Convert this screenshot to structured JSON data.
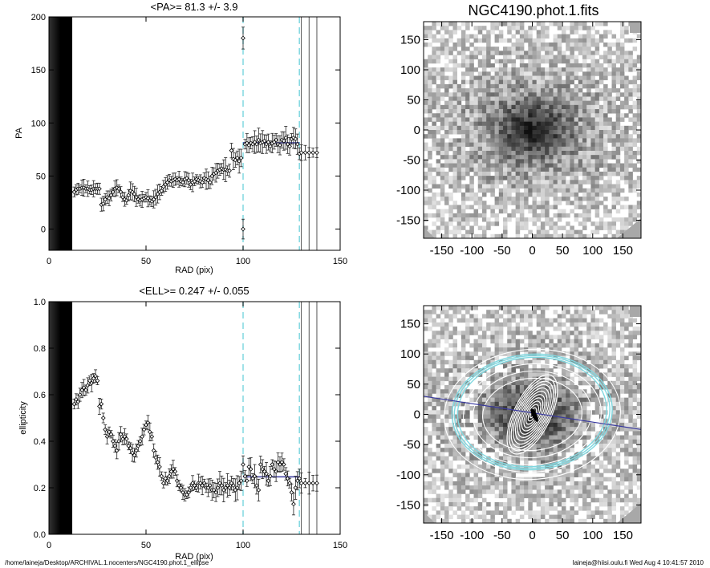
{
  "footer": {
    "path": "/home/laineja/Desktop/ARCHIVAL.1.nocenters/NGC4190.phot.1_ellipse",
    "user_date": "laineja@hiisi.oulu.fi  Wed Aug  4 10:41:57 2010"
  },
  "colors": {
    "mean_line": "#3a3aa0",
    "cyan": "#80d8e0",
    "marker": "#000000"
  },
  "chart_data": [
    {
      "type": "scatter",
      "title": "<PA>=  81.3 +/-   3.9",
      "xlabel": "RAD (pix)",
      "ylabel": "PA",
      "xlim": [
        0,
        150
      ],
      "ylim": [
        -20,
        200
      ],
      "xticks": [
        0,
        50,
        100,
        150
      ],
      "yticks": [
        0,
        50,
        100,
        150,
        200
      ],
      "masked_region": [
        0,
        12
      ],
      "cyan_dashed_x": [
        100,
        129
      ],
      "gray_vlines_x": [
        130,
        134,
        138
      ],
      "mean": {
        "value": 81.3,
        "err": 3.9,
        "range": [
          100,
          129
        ]
      },
      "x": [
        13,
        14,
        15,
        16,
        17,
        18,
        19,
        20,
        21,
        22,
        23,
        24,
        25,
        26,
        27,
        28,
        29,
        30,
        31,
        32,
        33,
        34,
        35,
        36,
        37,
        38,
        39,
        40,
        41,
        42,
        43,
        44,
        45,
        46,
        47,
        48,
        49,
        50,
        51,
        52,
        53,
        54,
        55,
        56,
        57,
        58,
        59,
        60,
        61,
        62,
        63,
        64,
        65,
        66,
        67,
        68,
        69,
        70,
        71,
        72,
        73,
        74,
        75,
        76,
        77,
        78,
        79,
        80,
        81,
        82,
        83,
        84,
        85,
        86,
        87,
        88,
        89,
        90,
        91,
        92,
        93,
        94,
        95,
        96,
        97,
        98,
        99,
        100,
        100,
        101,
        102,
        103,
        104,
        105,
        106,
        107,
        108,
        109,
        110,
        111,
        112,
        113,
        114,
        115,
        116,
        117,
        118,
        119,
        120,
        121,
        122,
        123,
        124,
        125,
        126,
        127,
        128,
        129,
        130,
        132,
        134,
        136,
        138
      ],
      "y": [
        35,
        37,
        38,
        38,
        39,
        39,
        38,
        38,
        37,
        37,
        38,
        38,
        38,
        38,
        23,
        24,
        28,
        30,
        29,
        32,
        35,
        38,
        39,
        38,
        35,
        30,
        28,
        27,
        32,
        36,
        35,
        33,
        30,
        28,
        27,
        28,
        29,
        30,
        29,
        27,
        26,
        28,
        30,
        33,
        35,
        36,
        40,
        42,
        44,
        46,
        45,
        46,
        47,
        46,
        47,
        45,
        44,
        47,
        48,
        46,
        42,
        44,
        45,
        47,
        46,
        45,
        44,
        48,
        47,
        46,
        44,
        50,
        52,
        53,
        55,
        56,
        57,
        56,
        56,
        55,
        55,
        74,
        66,
        65,
        67,
        64,
        67,
        0,
        180,
        80,
        81,
        79,
        81,
        80,
        82,
        80,
        84,
        81,
        82,
        83,
        80,
        82,
        78,
        81,
        82,
        84,
        80,
        79,
        84,
        83,
        86,
        80,
        78,
        85,
        86,
        85,
        80,
        71,
        72,
        72,
        72,
        72,
        72
      ]
    },
    {
      "type": "scatter",
      "title": "<ELL>= 0.247 +/-  0.055",
      "xlabel": "RAD (pix)",
      "ylabel": "ellipticity",
      "xlim": [
        0,
        150
      ],
      "ylim": [
        0,
        1
      ],
      "xticks": [
        0,
        50,
        100,
        150
      ],
      "yticks": [
        0.0,
        0.2,
        0.4,
        0.6,
        0.8,
        1.0
      ],
      "masked_region": [
        0,
        12
      ],
      "cyan_dashed_x": [
        100,
        129
      ],
      "gray_vlines_x": [
        130,
        134,
        138
      ],
      "mean": {
        "value": 0.247,
        "err": 0.055,
        "range": [
          100,
          129
        ]
      },
      "x": [
        13,
        14,
        15,
        16,
        17,
        18,
        19,
        20,
        21,
        22,
        23,
        24,
        25,
        26,
        27,
        28,
        29,
        30,
        31,
        32,
        33,
        34,
        35,
        36,
        37,
        38,
        39,
        40,
        41,
        42,
        43,
        44,
        45,
        46,
        47,
        48,
        49,
        50,
        51,
        52,
        53,
        54,
        55,
        56,
        57,
        58,
        59,
        60,
        61,
        62,
        63,
        64,
        65,
        66,
        67,
        68,
        69,
        70,
        71,
        72,
        73,
        74,
        75,
        76,
        77,
        78,
        79,
        80,
        81,
        82,
        83,
        84,
        85,
        86,
        87,
        88,
        89,
        90,
        91,
        92,
        93,
        94,
        95,
        96,
        97,
        98,
        99,
        100,
        101,
        102,
        103,
        104,
        105,
        106,
        107,
        108,
        109,
        110,
        111,
        112,
        113,
        114,
        115,
        116,
        117,
        118,
        119,
        120,
        121,
        122,
        123,
        124,
        125,
        126,
        127,
        128,
        129,
        130,
        132,
        134,
        136,
        138
      ],
      "y": [
        0.56,
        0.58,
        0.57,
        0.6,
        0.62,
        0.63,
        0.62,
        0.64,
        0.66,
        0.65,
        0.67,
        0.68,
        0.66,
        0.55,
        0.56,
        0.5,
        0.45,
        0.42,
        0.44,
        0.43,
        0.4,
        0.38,
        0.36,
        0.4,
        0.43,
        0.41,
        0.42,
        0.41,
        0.38,
        0.37,
        0.35,
        0.34,
        0.36,
        0.38,
        0.4,
        0.42,
        0.45,
        0.47,
        0.48,
        0.44,
        0.42,
        0.36,
        0.33,
        0.31,
        0.29,
        0.25,
        0.22,
        0.24,
        0.23,
        0.25,
        0.27,
        0.28,
        0.27,
        0.23,
        0.21,
        0.2,
        0.18,
        0.17,
        0.17,
        0.18,
        0.2,
        0.22,
        0.21,
        0.2,
        0.22,
        0.22,
        0.21,
        0.22,
        0.2,
        0.2,
        0.21,
        0.19,
        0.19,
        0.18,
        0.2,
        0.22,
        0.21,
        0.19,
        0.2,
        0.21,
        0.2,
        0.22,
        0.21,
        0.19,
        0.2,
        0.22,
        0.23,
        0.3,
        0.25,
        0.23,
        0.29,
        0.28,
        0.24,
        0.25,
        0.21,
        0.19,
        0.3,
        0.28,
        0.27,
        0.26,
        0.23,
        0.25,
        0.3,
        0.28,
        0.27,
        0.31,
        0.3,
        0.31,
        0.3,
        0.26,
        0.24,
        0.22,
        0.18,
        0.13,
        0.2,
        0.23,
        0.24,
        0.22,
        0.22,
        0.22,
        0.22,
        0.22
      ]
    },
    {
      "type": "image",
      "title": "NGC4190.phot.1.fits",
      "xlim": [
        -180,
        180
      ],
      "ylim": [
        -180,
        180
      ],
      "xticks": [
        -150,
        -100,
        -50,
        0,
        50,
        100,
        150
      ],
      "yticks": [
        -150,
        -100,
        -50,
        0,
        50,
        100,
        150
      ]
    },
    {
      "type": "image",
      "title": "",
      "xlim": [
        -180,
        180
      ],
      "ylim": [
        -180,
        180
      ],
      "xticks": [
        -150,
        -100,
        -50,
        0,
        50,
        100,
        150
      ],
      "yticks": [
        -150,
        -100,
        -50,
        0,
        50,
        100,
        150
      ],
      "position_angle_deg": 81.3
    }
  ]
}
